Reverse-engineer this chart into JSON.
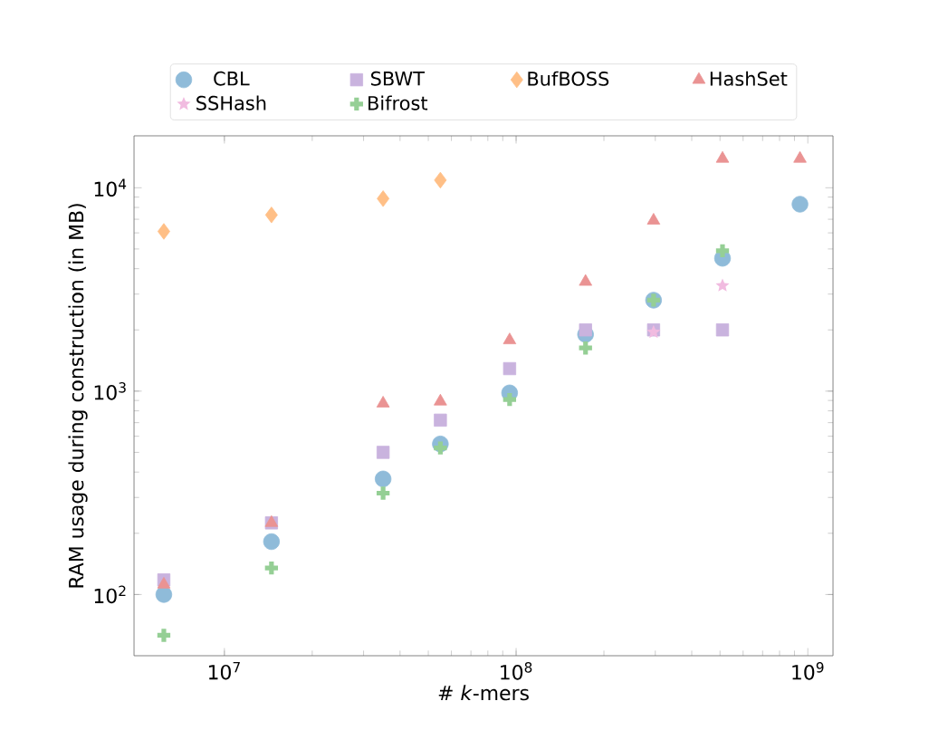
{
  "chart_data": {
    "type": "scatter",
    "xlabel": "# *k*-mers",
    "ylabel": "RAM usage during construction (in MB)",
    "log": "xy",
    "legend": "top",
    "grid": false,
    "x": [
      6200000,
      14500000,
      35000000,
      55000000,
      95000000,
      173000000,
      296000000,
      510000000,
      940000000
    ],
    "xlim": [
      4900000,
      1220000000
    ],
    "ylim": [
      50,
      18000
    ],
    "xticks": [
      {
        "value": 10000000,
        "label": "10$^{7}$"
      },
      {
        "value": 100000000,
        "label": "10$^{8}$"
      },
      {
        "value": 1000000000,
        "label": "10$^{9}$"
      }
    ],
    "yticks": [
      {
        "value": 100,
        "label": "10$^{2}$"
      },
      {
        "value": 1000,
        "label": "10$^{3}$"
      },
      {
        "value": 10000,
        "label": "10$^{4}$"
      }
    ],
    "series": [
      {
        "name": "CBL",
        "color": "#8fbbd9",
        "marker": "circle",
        "values": [
          100,
          182,
          370,
          550,
          980,
          1900,
          2800,
          4500,
          8300
        ]
      },
      {
        "name": "SBWT",
        "color": "#c9b3de",
        "marker": "square",
        "values": [
          118,
          225,
          500,
          720,
          1290,
          2000,
          2000,
          2000,
          null
        ]
      },
      {
        "name": "BufBOSS",
        "color": "#ffbf86",
        "marker": "diamond",
        "values": [
          6100,
          7350,
          8840,
          10900,
          null,
          null,
          null,
          null,
          null
        ]
      },
      {
        "name": "HashSet",
        "color": "#ea9393",
        "marker": "triangle",
        "values": [
          112,
          225,
          870,
          890,
          1780,
          3450,
          6900,
          13900,
          13900
        ]
      },
      {
        "name": "SSHash",
        "color": "#f1bbe0",
        "marker": "star",
        "values": [
          null,
          null,
          null,
          null,
          null,
          null,
          1950,
          3300,
          null
        ]
      },
      {
        "name": "Bifrost",
        "color": "#95cf95",
        "marker": "cross",
        "values": [
          63,
          135,
          315,
          525,
          910,
          1630,
          2800,
          4900,
          null
        ]
      }
    ]
  }
}
